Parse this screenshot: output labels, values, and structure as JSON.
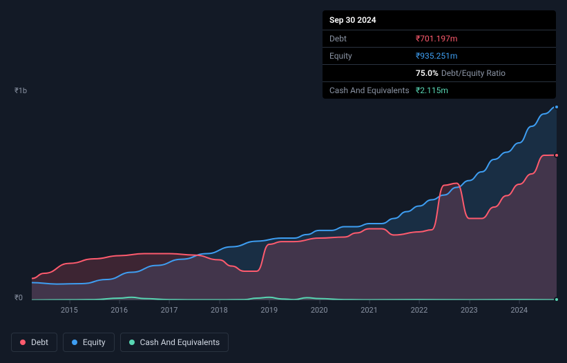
{
  "tooltip": {
    "date": "Sep 30 2024",
    "rows": [
      {
        "label": "Debt",
        "value": "₹701.197m",
        "colorClass": "debt-color"
      },
      {
        "label": "Equity",
        "value": "₹935.251m",
        "colorClass": "equity-color"
      },
      {
        "label": "",
        "ratio_value": "75.0%",
        "ratio_label": "Debt/Equity Ratio"
      },
      {
        "label": "Cash And Equivalents",
        "value": "₹2.115m",
        "colorClass": "cash-color"
      }
    ]
  },
  "chart": {
    "type": "area",
    "background_color": "#131a26",
    "y_labels": {
      "top": "₹1b",
      "bottom": "₹0"
    },
    "x_ticks": [
      "2015",
      "2016",
      "2017",
      "2018",
      "2019",
      "2020",
      "2021",
      "2022",
      "2023",
      "2024"
    ],
    "x_domain": [
      2014.25,
      2024.75
    ],
    "y_domain": [
      0,
      1000
    ],
    "series": {
      "debt": {
        "label": "Debt",
        "stroke": "#ff5b6e",
        "fill": "rgba(255,91,110,0.18)",
        "stroke_width": 2,
        "data": [
          [
            2014.25,
            105
          ],
          [
            2014.5,
            130
          ],
          [
            2015.0,
            178
          ],
          [
            2015.5,
            200
          ],
          [
            2016.0,
            215
          ],
          [
            2016.5,
            225
          ],
          [
            2017.0,
            225
          ],
          [
            2017.5,
            218
          ],
          [
            2018.0,
            195
          ],
          [
            2018.25,
            165
          ],
          [
            2018.5,
            140
          ],
          [
            2018.75,
            140
          ],
          [
            2019.0,
            270
          ],
          [
            2019.25,
            283
          ],
          [
            2019.5,
            283
          ],
          [
            2020.0,
            300
          ],
          [
            2020.5,
            305
          ],
          [
            2020.75,
            325
          ],
          [
            2021.0,
            345
          ],
          [
            2021.25,
            345
          ],
          [
            2021.5,
            315
          ],
          [
            2022.0,
            330
          ],
          [
            2022.25,
            340
          ],
          [
            2022.5,
            555
          ],
          [
            2022.75,
            565
          ],
          [
            2023.0,
            395
          ],
          [
            2023.25,
            395
          ],
          [
            2023.5,
            450
          ],
          [
            2023.75,
            505
          ],
          [
            2024.0,
            560
          ],
          [
            2024.25,
            610
          ],
          [
            2024.5,
            700
          ],
          [
            2024.75,
            701
          ]
        ]
      },
      "equity": {
        "label": "Equity",
        "stroke": "#3e9ef2",
        "fill": "rgba(62,158,242,0.15)",
        "stroke_width": 2,
        "data": [
          [
            2014.25,
            85
          ],
          [
            2014.75,
            78
          ],
          [
            2015.25,
            80
          ],
          [
            2015.75,
            100
          ],
          [
            2016.25,
            135
          ],
          [
            2016.75,
            168
          ],
          [
            2017.25,
            198
          ],
          [
            2017.75,
            225
          ],
          [
            2018.25,
            258
          ],
          [
            2018.75,
            285
          ],
          [
            2019.25,
            300
          ],
          [
            2019.5,
            300
          ],
          [
            2019.75,
            317
          ],
          [
            2020.0,
            337
          ],
          [
            2020.25,
            337
          ],
          [
            2020.5,
            355
          ],
          [
            2020.75,
            355
          ],
          [
            2021.0,
            370
          ],
          [
            2021.25,
            370
          ],
          [
            2021.5,
            395
          ],
          [
            2021.75,
            428
          ],
          [
            2022.0,
            455
          ],
          [
            2022.25,
            485
          ],
          [
            2022.5,
            508
          ],
          [
            2022.75,
            545
          ],
          [
            2023.0,
            578
          ],
          [
            2023.25,
            620
          ],
          [
            2023.5,
            680
          ],
          [
            2023.75,
            715
          ],
          [
            2024.0,
            760
          ],
          [
            2024.25,
            840
          ],
          [
            2024.5,
            900
          ],
          [
            2024.75,
            935
          ]
        ]
      },
      "cash": {
        "label": "Cash And Equivalents",
        "stroke": "#58d6b3",
        "fill": "rgba(88,214,179,0.12)",
        "stroke_width": 2,
        "data": [
          [
            2014.25,
            1
          ],
          [
            2015.0,
            2
          ],
          [
            2015.5,
            3
          ],
          [
            2016.0,
            10
          ],
          [
            2016.25,
            14
          ],
          [
            2016.5,
            8
          ],
          [
            2017.0,
            3
          ],
          [
            2017.5,
            2
          ],
          [
            2018.0,
            2
          ],
          [
            2018.5,
            3
          ],
          [
            2018.75,
            10
          ],
          [
            2019.0,
            14
          ],
          [
            2019.25,
            6
          ],
          [
            2019.5,
            3
          ],
          [
            2019.75,
            12
          ],
          [
            2020.0,
            8
          ],
          [
            2020.5,
            3
          ],
          [
            2021.0,
            2
          ],
          [
            2022.0,
            3
          ],
          [
            2023.0,
            2
          ],
          [
            2024.0,
            3
          ],
          [
            2024.75,
            2
          ]
        ]
      }
    }
  },
  "legend": [
    {
      "label": "Debt",
      "color": "#ff5b6e"
    },
    {
      "label": "Equity",
      "color": "#3e9ef2"
    },
    {
      "label": "Cash And Equivalents",
      "color": "#58d6b3"
    }
  ]
}
